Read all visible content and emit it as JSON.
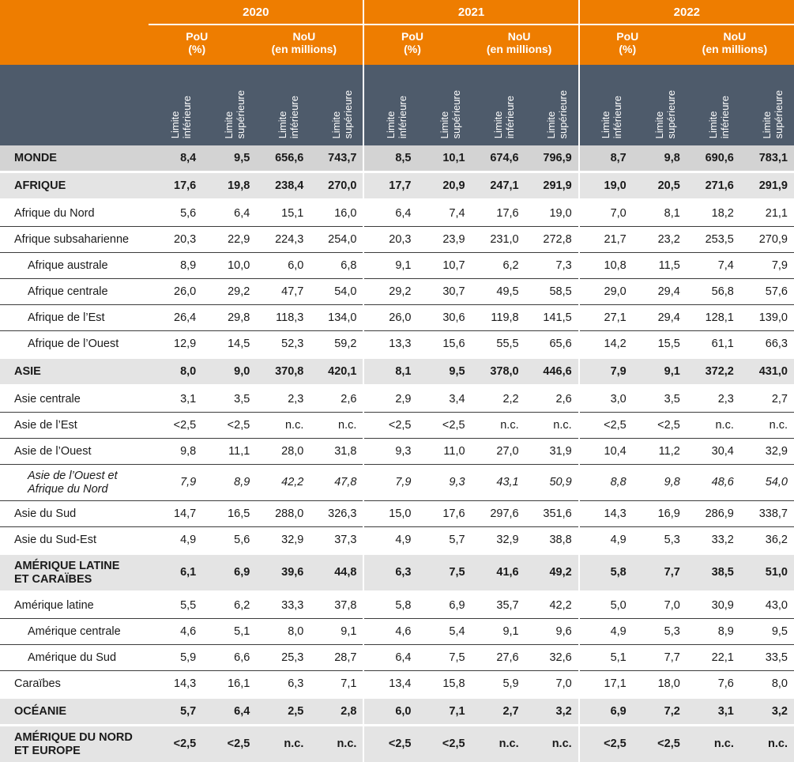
{
  "header": {
    "years": [
      "2020",
      "2021",
      "2022"
    ],
    "groups": [
      {
        "name": "PoU",
        "unit": "(%)"
      },
      {
        "name": "NoU",
        "unit": "(en millions)"
      }
    ],
    "limits": [
      {
        "line1": "Limite",
        "line2": "inférieure"
      },
      {
        "line1": "Limite",
        "line2": "supérieure"
      }
    ]
  },
  "rows": [
    {
      "label": "MONDE",
      "level": "world",
      "values": [
        "8,4",
        "9,5",
        "656,6",
        "743,7",
        "8,5",
        "10,1",
        "674,6",
        "796,9",
        "8,7",
        "9,8",
        "690,6",
        "783,1"
      ]
    },
    {
      "label": "AFRIQUE",
      "level": "region",
      "values": [
        "17,6",
        "19,8",
        "238,4",
        "270,0",
        "17,7",
        "20,9",
        "247,1",
        "291,9",
        "19,0",
        "20,5",
        "271,6",
        "291,9"
      ]
    },
    {
      "label": "Afrique du Nord",
      "level": "sub",
      "values": [
        "5,6",
        "6,4",
        "15,1",
        "16,0",
        "6,4",
        "7,4",
        "17,6",
        "19,0",
        "7,0",
        "8,1",
        "18,2",
        "21,1"
      ]
    },
    {
      "label": "Afrique subsaharienne",
      "level": "sub",
      "values": [
        "20,3",
        "22,9",
        "224,3",
        "254,0",
        "20,3",
        "23,9",
        "231,0",
        "272,8",
        "21,7",
        "23,2",
        "253,5",
        "270,9"
      ]
    },
    {
      "label": "Afrique australe",
      "level": "sub-indent",
      "values": [
        "8,9",
        "10,0",
        "6,0",
        "6,8",
        "9,1",
        "10,7",
        "6,2",
        "7,3",
        "10,8",
        "11,5",
        "7,4",
        "7,9"
      ]
    },
    {
      "label": "Afrique centrale",
      "level": "sub-indent",
      "values": [
        "26,0",
        "29,2",
        "47,7",
        "54,0",
        "29,2",
        "30,7",
        "49,5",
        "58,5",
        "29,0",
        "29,4",
        "56,8",
        "57,6"
      ]
    },
    {
      "label": "Afrique de l’Est",
      "level": "sub-indent",
      "values": [
        "26,4",
        "29,8",
        "118,3",
        "134,0",
        "26,0",
        "30,6",
        "119,8",
        "141,5",
        "27,1",
        "29,4",
        "128,1",
        "139,0"
      ]
    },
    {
      "label": "Afrique de l’Ouest",
      "level": "sub-indent-last",
      "values": [
        "12,9",
        "14,5",
        "52,3",
        "59,2",
        "13,3",
        "15,6",
        "55,5",
        "65,6",
        "14,2",
        "15,5",
        "61,1",
        "66,3"
      ]
    },
    {
      "label": "ASIE",
      "level": "region",
      "values": [
        "8,0",
        "9,0",
        "370,8",
        "420,1",
        "8,1",
        "9,5",
        "378,0",
        "446,6",
        "7,9",
        "9,1",
        "372,2",
        "431,0"
      ]
    },
    {
      "label": "Asie centrale",
      "level": "sub",
      "values": [
        "3,1",
        "3,5",
        "2,3",
        "2,6",
        "2,9",
        "3,4",
        "2,2",
        "2,6",
        "3,0",
        "3,5",
        "2,3",
        "2,7"
      ]
    },
    {
      "label": "Asie de l’Est",
      "level": "sub",
      "values": [
        "<2,5",
        "<2,5",
        "n.c.",
        "n.c.",
        "<2,5",
        "<2,5",
        "n.c.",
        "n.c.",
        "<2,5",
        "<2,5",
        "n.c.",
        "n.c."
      ]
    },
    {
      "label": "Asie de l’Ouest",
      "level": "sub",
      "values": [
        "9,8",
        "11,1",
        "28,0",
        "31,8",
        "9,3",
        "11,0",
        "27,0",
        "31,9",
        "10,4",
        "11,2",
        "30,4",
        "32,9"
      ]
    },
    {
      "label": "Asie de l’Ouest et",
      "label2": "Afrique du Nord",
      "level": "sub-italic",
      "values": [
        "7,9",
        "8,9",
        "42,2",
        "47,8",
        "7,9",
        "9,3",
        "43,1",
        "50,9",
        "8,8",
        "9,8",
        "48,6",
        "54,0"
      ]
    },
    {
      "label": "Asie du Sud",
      "level": "sub",
      "values": [
        "14,7",
        "16,5",
        "288,0",
        "326,3",
        "15,0",
        "17,6",
        "297,6",
        "351,6",
        "14,3",
        "16,9",
        "286,9",
        "338,7"
      ]
    },
    {
      "label": "Asie du Sud-Est",
      "level": "sub-last",
      "values": [
        "4,9",
        "5,6",
        "32,9",
        "37,3",
        "4,9",
        "5,7",
        "32,9",
        "38,8",
        "4,9",
        "5,3",
        "33,2",
        "36,2"
      ]
    },
    {
      "label": "AMÉRIQUE LATINE",
      "label2": "ET CARAÏBES",
      "level": "region-tall",
      "values": [
        "6,1",
        "6,9",
        "39,6",
        "44,8",
        "6,3",
        "7,5",
        "41,6",
        "49,2",
        "5,8",
        "7,7",
        "38,5",
        "51,0"
      ]
    },
    {
      "label": "Amérique latine",
      "level": "sub",
      "values": [
        "5,5",
        "6,2",
        "33,3",
        "37,8",
        "5,8",
        "6,9",
        "35,7",
        "42,2",
        "5,0",
        "7,0",
        "30,9",
        "43,0"
      ]
    },
    {
      "label": "Amérique centrale",
      "level": "sub-indent",
      "values": [
        "4,6",
        "5,1",
        "8,0",
        "9,1",
        "4,6",
        "5,4",
        "9,1",
        "9,6",
        "4,9",
        "5,3",
        "8,9",
        "9,5"
      ]
    },
    {
      "label": "Amérique du Sud",
      "level": "sub-indent",
      "values": [
        "5,9",
        "6,6",
        "25,3",
        "28,7",
        "6,4",
        "7,5",
        "27,6",
        "32,6",
        "5,1",
        "7,7",
        "22,1",
        "33,5"
      ]
    },
    {
      "label": "Caraïbes",
      "level": "sub-last",
      "values": [
        "14,3",
        "16,1",
        "6,3",
        "7,1",
        "13,4",
        "15,8",
        "5,9",
        "7,0",
        "17,1",
        "18,0",
        "7,6",
        "8,0"
      ]
    },
    {
      "label": "OCÉANIE",
      "level": "region",
      "values": [
        "5,7",
        "6,4",
        "2,5",
        "2,8",
        "6,0",
        "7,1",
        "2,7",
        "3,2",
        "6,9",
        "7,2",
        "3,1",
        "3,2"
      ]
    },
    {
      "label": "AMÉRIQUE DU NORD",
      "label2": "ET EUROPE",
      "level": "region-tall",
      "values": [
        "<2,5",
        "<2,5",
        "n.c.",
        "n.c.",
        "<2,5",
        "<2,5",
        "n.c.",
        "n.c.",
        "<2,5",
        "<2,5",
        "n.c.",
        "n.c."
      ]
    }
  ],
  "colors": {
    "header_orange": "#ee7d00",
    "header_slate": "#4e5b6b",
    "world_row": "#d3d3d3",
    "region_row": "#e4e4e4"
  }
}
